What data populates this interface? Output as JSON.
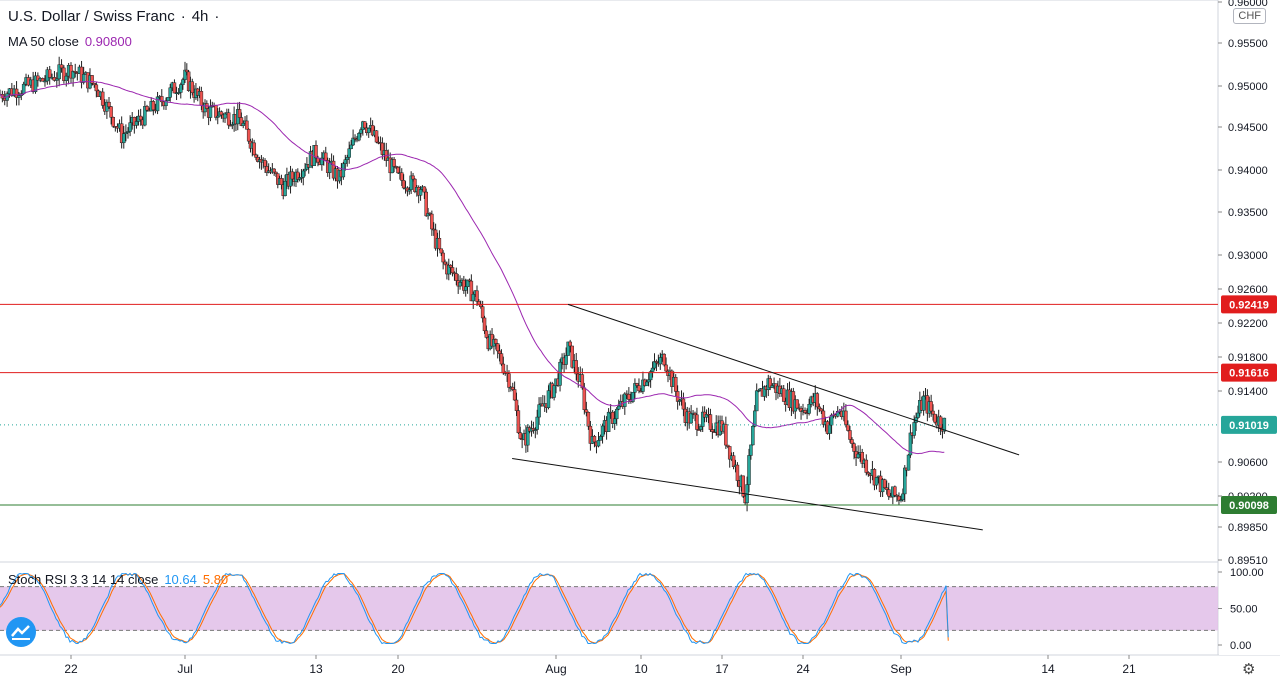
{
  "header": {
    "symbol": "U.S. Dollar / Swiss Franc",
    "timeframe": "4h",
    "dot": "·",
    "ma_label": "MA 50 close",
    "ma_value": "0.90800",
    "currency": "CHF"
  },
  "stoch": {
    "label": "Stoch RSI 3 3 14 14 close",
    "k_value": "10.64",
    "d_value": "5.80",
    "ticks": [
      "100.00",
      "50.00",
      "0.00"
    ]
  },
  "price_axis": {
    "ticks": [
      "0.96000",
      "0.95500",
      "0.95000",
      "0.94500",
      "0.94000",
      "0.93500",
      "0.93000",
      "0.92600",
      "0.92200",
      "0.91800",
      "0.91400",
      "0.90600",
      "0.90200",
      "0.89850",
      "0.89510"
    ]
  },
  "time_axis": {
    "labels": [
      "22",
      "Jul",
      "13",
      "20",
      "Aug",
      "10",
      "17",
      "24",
      "Sep",
      "14",
      "21"
    ]
  },
  "levels": [
    {
      "label": "0.92419",
      "color": "#e11d1d"
    },
    {
      "label": "0.91616",
      "color": "#e11d1d"
    },
    {
      "label": "0.91019",
      "color": "#26a69a"
    },
    {
      "label": "0.90098",
      "color": "#2e7d32"
    }
  ],
  "colors": {
    "up": "#26a69a",
    "down": "#ef5350",
    "ma": "#9c27b0",
    "stoch_k": "#2196f3",
    "stoch_d": "#ff6d00",
    "band": "#e1bee7"
  },
  "chart_data": [
    {
      "type": "candlestick",
      "title": "U.S. Dollar / Swiss Franc · 4h",
      "y_range": [
        0.8951,
        0.96
      ],
      "x_labels": [
        "22",
        "Jul",
        "13",
        "20",
        "Aug",
        "10",
        "17",
        "24",
        "Sep",
        "14",
        "21"
      ],
      "close_path": [
        [
          "Jun 17",
          0.949
        ],
        [
          "Jun 19",
          0.95
        ],
        [
          "Jun 22",
          0.952
        ],
        [
          "Jun 24",
          0.95
        ],
        [
          "Jun 26",
          0.944
        ],
        [
          "Jun 29",
          0.948
        ],
        [
          "Jul 1",
          0.951
        ],
        [
          "Jul 3",
          0.947
        ],
        [
          "Jul 6",
          0.946
        ],
        [
          "Jul 8",
          0.941
        ],
        [
          "Jul 10",
          0.938
        ],
        [
          "Jul 13",
          0.942
        ],
        [
          "Jul 15",
          0.939
        ],
        [
          "Jul 17",
          0.946
        ],
        [
          "Jul 20",
          0.939
        ],
        [
          "Jul 22",
          0.938
        ],
        [
          "Jul 23",
          0.933
        ],
        [
          "Jul 24",
          0.929
        ],
        [
          "Jul 27",
          0.925
        ],
        [
          "Jul 28",
          0.92
        ],
        [
          "Jul 29",
          0.918
        ],
        [
          "Jul 30",
          0.915
        ],
        [
          "Jul 31",
          0.908
        ],
        [
          "Aug 3",
          0.915
        ],
        [
          "Aug 4",
          0.919
        ],
        [
          "Aug 5",
          0.915
        ],
        [
          "Aug 6",
          0.908
        ],
        [
          "Aug 7",
          0.91
        ],
        [
          "Aug 10",
          0.915
        ],
        [
          "Aug 12",
          0.918
        ],
        [
          "Aug 13",
          0.914
        ],
        [
          "Aug 14",
          0.911
        ],
        [
          "Aug 17",
          0.91
        ],
        [
          "Aug 18",
          0.906
        ],
        [
          "Aug 19",
          0.902
        ],
        [
          "Aug 20",
          0.913
        ],
        [
          "Aug 21",
          0.915
        ],
        [
          "Aug 24",
          0.912
        ],
        [
          "Aug 25",
          0.913
        ],
        [
          "Aug 26",
          0.91
        ],
        [
          "Aug 27",
          0.912
        ],
        [
          "Aug 28",
          0.908
        ],
        [
          "Aug 31",
          0.902
        ],
        [
          "Sep 1",
          0.902
        ],
        [
          "Sep 2",
          0.91
        ],
        [
          "Sep 3",
          0.913
        ],
        [
          "Sep 4",
          0.911
        ],
        [
          "Sep 5",
          0.9102
        ]
      ],
      "ma50_last": 0.908,
      "lines": [
        {
          "name": "0.92419",
          "y": 0.92419
        },
        {
          "name": "0.91616",
          "y": 0.91616
        },
        {
          "name": "0.90098",
          "y": 0.90098
        }
      ],
      "wedge": {
        "upper": [
          [
            "Aug 3",
            0.92419
          ],
          [
            "Sep 11",
            0.9068
          ]
        ],
        "lower": [
          [
            "Jul 31",
            0.9064
          ],
          [
            "Sep 10",
            0.8982
          ]
        ]
      }
    },
    {
      "type": "line",
      "title": "Stoch RSI 3 3 14 14 close",
      "y_range": [
        0,
        100
      ],
      "bands": [
        20,
        80
      ],
      "series": [
        {
          "name": "K",
          "last": 10.64
        },
        {
          "name": "D",
          "last": 5.8
        }
      ]
    }
  ]
}
